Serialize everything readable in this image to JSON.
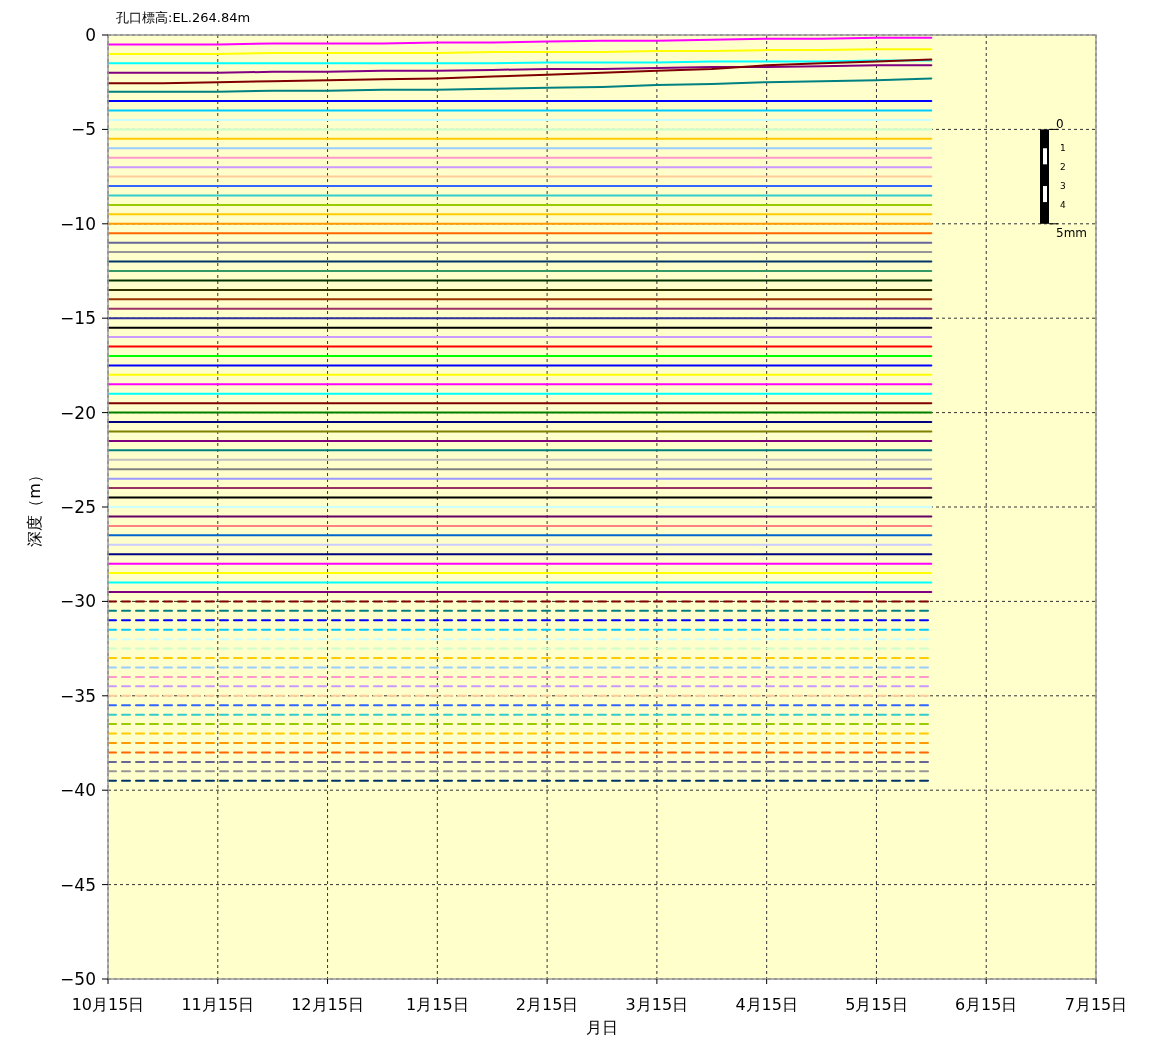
{
  "chart_data": {
    "type": "line",
    "xlabel": "月日",
    "ylabel": "深度（m）",
    "annotations": [
      "孔口標高:EL.264.84m",
      "0",
      "1",
      "2",
      "3",
      "4",
      "5mm"
    ],
    "categories": [
      "10月15日",
      null,
      "11月15日",
      null,
      "12月15日",
      null,
      "1月15日",
      null,
      "2月15日",
      null,
      "3月15日",
      null,
      "4月15日",
      null,
      "5月15日",
      null,
      "6月15日",
      null,
      "7月15日"
    ],
    "ylim": [
      -50,
      0
    ],
    "yticks": [
      -50,
      -45,
      -40,
      -35,
      -30,
      -25,
      -20,
      -15,
      -10,
      -5,
      0
    ],
    "grid": true,
    "line_style": "solid",
    "series": [
      {
        "color": "#ff00ff",
        "values": [
          -0.5,
          -0.5,
          -0.5,
          -0.45,
          -0.45,
          -0.45,
          -0.4,
          -0.4,
          -0.35,
          -0.3,
          -0.3,
          -0.25,
          -0.2,
          -0.2,
          -0.15,
          -0.15,
          null,
          null,
          null
        ]
      },
      {
        "color": "#ffff00",
        "values": [
          -1.0,
          -1.0,
          -1.0,
          -0.95,
          -0.95,
          -0.95,
          -0.95,
          -0.9,
          -0.9,
          -0.9,
          -0.85,
          -0.85,
          -0.8,
          -0.8,
          -0.75,
          -0.75,
          null,
          null,
          null
        ]
      },
      {
        "color": "#00ffff",
        "values": [
          -1.5,
          -1.5,
          -1.5,
          -1.5,
          -1.5,
          -1.5,
          -1.5,
          -1.5,
          -1.45,
          -1.45,
          -1.45,
          -1.4,
          -1.4,
          -1.4,
          -1.35,
          -1.35,
          null,
          null,
          null
        ]
      },
      {
        "color": "#800080",
        "values": [
          -2.0,
          -2.0,
          -2.0,
          -1.95,
          -1.95,
          -1.9,
          -1.9,
          -1.85,
          -1.8,
          -1.8,
          -1.75,
          -1.7,
          -1.7,
          -1.65,
          -1.6,
          -1.6,
          null,
          null,
          null
        ]
      },
      {
        "color": "#800000",
        "values": [
          -2.55,
          -2.55,
          -2.5,
          -2.45,
          -2.4,
          -2.35,
          -2.3,
          -2.2,
          -2.1,
          -2.0,
          -1.9,
          -1.8,
          -1.6,
          -1.5,
          -1.4,
          -1.3,
          null,
          null,
          null
        ]
      },
      {
        "color": "#008080",
        "values": [
          -3.0,
          -3.0,
          -3.0,
          -2.95,
          -2.95,
          -2.9,
          -2.9,
          -2.85,
          -2.8,
          -2.75,
          -2.65,
          -2.6,
          -2.5,
          -2.45,
          -2.4,
          -2.3,
          null,
          null,
          null
        ]
      },
      {
        "color": "#0000ff",
        "values": [
          -3.5,
          -3.5,
          -3.5,
          -3.5,
          -3.5,
          -3.5,
          -3.5,
          -3.5,
          -3.5,
          -3.5,
          -3.5,
          -3.5,
          -3.5,
          -3.5,
          -3.5,
          -3.5,
          null,
          null,
          null
        ]
      },
      {
        "color": "#00ccff",
        "values": [
          -4.0,
          -4.0,
          -4.0,
          -4.0,
          -4.0,
          -4.0,
          -4.0,
          -4.0,
          -4.0,
          -4.0,
          -4.0,
          -4.0,
          -4.0,
          -4.0,
          -4.0,
          -4.0,
          null,
          null,
          null
        ]
      },
      {
        "color": "#ccffff",
        "values": [
          -4.5,
          -4.5,
          -4.5,
          -4.5,
          -4.5,
          -4.5,
          -4.5,
          -4.5,
          -4.5,
          -4.5,
          -4.5,
          -4.5,
          -4.5,
          -4.5,
          -4.5,
          -4.5,
          null,
          null,
          null
        ]
      },
      {
        "color": "#ccffcc",
        "values": [
          -5.0,
          -5.0,
          -5.0,
          -5.0,
          -5.0,
          -5.0,
          -5.0,
          -5.0,
          -5.0,
          -5.0,
          -5.0,
          -5.0,
          -5.0,
          -5.0,
          -5.0,
          -5.0,
          null,
          null,
          null
        ]
      },
      {
        "color": "#ffcc00",
        "values": [
          -5.5,
          -5.5,
          -5.5,
          -5.5,
          -5.5,
          -5.5,
          -5.5,
          -5.5,
          -5.5,
          -5.5,
          -5.5,
          -5.5,
          -5.5,
          -5.5,
          -5.5,
          -5.5,
          null,
          null,
          null
        ]
      },
      {
        "color": "#99ccff",
        "values": [
          -6.0,
          -6.0,
          -6.0,
          -6.0,
          -6.0,
          -6.0,
          -6.0,
          -6.0,
          -6.0,
          -6.0,
          -6.0,
          -6.0,
          -6.0,
          -6.0,
          -6.0,
          -6.0,
          null,
          null,
          null
        ]
      },
      {
        "color": "#ff99cc",
        "values": [
          -6.5,
          -6.5,
          -6.5,
          -6.5,
          -6.5,
          -6.5,
          -6.5,
          -6.5,
          -6.5,
          -6.5,
          -6.5,
          -6.5,
          -6.5,
          -6.5,
          -6.5,
          -6.5,
          null,
          null,
          null
        ]
      },
      {
        "color": "#cc99ff",
        "values": [
          -7.0,
          -7.0,
          -7.0,
          -7.0,
          -7.0,
          -7.0,
          -7.0,
          -7.0,
          -7.0,
          -7.0,
          -7.0,
          -7.0,
          -7.0,
          -7.0,
          -7.0,
          -7.0,
          null,
          null,
          null
        ]
      },
      {
        "color": "#ffcc99",
        "values": [
          -7.5,
          -7.5,
          -7.5,
          -7.5,
          -7.5,
          -7.5,
          -7.5,
          -7.5,
          -7.5,
          -7.5,
          -7.5,
          -7.5,
          -7.5,
          -7.5,
          -7.5,
          -7.5,
          null,
          null,
          null
        ]
      },
      {
        "color": "#3366ff",
        "values": [
          -8.0,
          -8.0,
          -8.0,
          -8.0,
          -8.0,
          -8.0,
          -8.0,
          -8.0,
          -8.0,
          -8.0,
          -8.0,
          -8.0,
          -8.0,
          -8.0,
          -8.0,
          -8.0,
          null,
          null,
          null
        ]
      },
      {
        "color": "#33cccc",
        "values": [
          -8.5,
          -8.5,
          -8.5,
          -8.5,
          -8.5,
          -8.5,
          -8.5,
          -8.5,
          -8.5,
          -8.5,
          -8.5,
          -8.5,
          -8.5,
          -8.5,
          -8.5,
          -8.5,
          null,
          null,
          null
        ]
      },
      {
        "color": "#99cc00",
        "values": [
          -9.0,
          -9.0,
          -9.0,
          -9.0,
          -9.0,
          -9.0,
          -9.0,
          -9.0,
          -9.0,
          -9.0,
          -9.0,
          -9.0,
          -9.0,
          -9.0,
          -9.0,
          -9.0,
          null,
          null,
          null
        ]
      },
      {
        "color": "#ffcc00",
        "values": [
          -9.5,
          -9.5,
          -9.5,
          -9.5,
          -9.5,
          -9.5,
          -9.5,
          -9.5,
          -9.5,
          -9.5,
          -9.5,
          -9.5,
          -9.5,
          -9.5,
          -9.5,
          -9.5,
          null,
          null,
          null
        ]
      },
      {
        "color": "#ff9900",
        "values": [
          -10.0,
          -10.0,
          -10.0,
          -10.0,
          -10.0,
          -10.0,
          -10.0,
          -10.0,
          -10.0,
          -10.0,
          -10.0,
          -10.0,
          -10.0,
          -10.0,
          -10.0,
          -10.0,
          null,
          null,
          null
        ]
      },
      {
        "color": "#ff6600",
        "values": [
          -10.5,
          -10.5,
          -10.5,
          -10.5,
          -10.5,
          -10.5,
          -10.5,
          -10.5,
          -10.5,
          -10.5,
          -10.5,
          -10.5,
          -10.5,
          -10.5,
          -10.5,
          -10.5,
          null,
          null,
          null
        ]
      },
      {
        "color": "#666699",
        "values": [
          -11.0,
          -11.0,
          -11.0,
          -11.0,
          -11.0,
          -11.0,
          -11.0,
          -11.0,
          -11.0,
          -11.0,
          -11.0,
          -11.0,
          -11.0,
          -11.0,
          -11.0,
          -11.0,
          null,
          null,
          null
        ]
      },
      {
        "color": "#969696",
        "values": [
          -11.5,
          -11.5,
          -11.5,
          -11.5,
          -11.5,
          -11.5,
          -11.5,
          -11.5,
          -11.5,
          -11.5,
          -11.5,
          -11.5,
          -11.5,
          -11.5,
          -11.5,
          -11.5,
          null,
          null,
          null
        ]
      },
      {
        "color": "#003366",
        "values": [
          -12.0,
          -12.0,
          -12.0,
          -12.0,
          -12.0,
          -12.0,
          -12.0,
          -12.0,
          -12.0,
          -12.0,
          -12.0,
          -12.0,
          -12.0,
          -12.0,
          -12.0,
          -12.0,
          null,
          null,
          null
        ]
      },
      {
        "color": "#339966",
        "values": [
          -12.5,
          -12.5,
          -12.5,
          -12.5,
          -12.5,
          -12.5,
          -12.5,
          -12.5,
          -12.5,
          -12.5,
          -12.5,
          -12.5,
          -12.5,
          -12.5,
          -12.5,
          -12.5,
          null,
          null,
          null
        ]
      },
      {
        "color": "#003300",
        "values": [
          -13.0,
          -13.0,
          -13.0,
          -13.0,
          -13.0,
          -13.0,
          -13.0,
          -13.0,
          -13.0,
          -13.0,
          -13.0,
          -13.0,
          -13.0,
          -13.0,
          -13.0,
          -13.0,
          null,
          null,
          null
        ]
      },
      {
        "color": "#333300",
        "values": [
          -13.5,
          -13.5,
          -13.5,
          -13.5,
          -13.5,
          -13.5,
          -13.5,
          -13.5,
          -13.5,
          -13.5,
          -13.5,
          -13.5,
          -13.5,
          -13.5,
          -13.5,
          -13.5,
          null,
          null,
          null
        ]
      },
      {
        "color": "#993300",
        "values": [
          -14.0,
          -14.0,
          -14.0,
          -14.0,
          -14.0,
          -14.0,
          -14.0,
          -14.0,
          -14.0,
          -14.0,
          -14.0,
          -14.0,
          -14.0,
          -14.0,
          -14.0,
          -14.0,
          null,
          null,
          null
        ]
      },
      {
        "color": "#993366",
        "values": [
          -14.5,
          -14.5,
          -14.5,
          -14.5,
          -14.5,
          -14.5,
          -14.5,
          -14.5,
          -14.5,
          -14.5,
          -14.5,
          -14.5,
          -14.5,
          -14.5,
          -14.5,
          -14.5,
          null,
          null,
          null
        ]
      },
      {
        "color": "#333399",
        "values": [
          -15.0,
          -15.0,
          -15.0,
          -15.0,
          -15.0,
          -15.0,
          -15.0,
          -15.0,
          -15.0,
          -15.0,
          -15.0,
          -15.0,
          -15.0,
          -15.0,
          -15.0,
          -15.0,
          null,
          null,
          null
        ]
      },
      {
        "color": "#000000",
        "values": [
          -15.5,
          -15.5,
          -15.5,
          -15.5,
          -15.5,
          -15.5,
          -15.5,
          -15.5,
          -15.5,
          -15.5,
          -15.5,
          -15.5,
          -15.5,
          -15.5,
          -15.5,
          -15.5,
          null,
          null,
          null
        ]
      },
      {
        "color": "#cc99ff",
        "values": [
          -16.0,
          -16.0,
          -16.0,
          -16.0,
          -16.0,
          -16.0,
          -16.0,
          -16.0,
          -16.0,
          -16.0,
          -16.0,
          -16.0,
          -16.0,
          -16.0,
          -16.0,
          -16.0,
          null,
          null,
          null
        ]
      },
      {
        "color": "#ff0000",
        "values": [
          -16.5,
          -16.5,
          -16.5,
          -16.5,
          -16.5,
          -16.5,
          -16.5,
          -16.5,
          -16.5,
          -16.5,
          -16.5,
          -16.5,
          -16.5,
          -16.5,
          -16.5,
          -16.5,
          null,
          null,
          null
        ]
      },
      {
        "color": "#00ff00",
        "values": [
          -17.0,
          -17.0,
          -17.0,
          -17.0,
          -17.0,
          -17.0,
          -17.0,
          -17.0,
          -17.0,
          -17.0,
          -17.0,
          -17.0,
          -17.0,
          -17.0,
          -17.0,
          -17.0,
          null,
          null,
          null
        ]
      },
      {
        "color": "#0000ff",
        "values": [
          -17.5,
          -17.5,
          -17.5,
          -17.5,
          -17.5,
          -17.5,
          -17.5,
          -17.5,
          -17.5,
          -17.5,
          -17.5,
          -17.5,
          -17.5,
          -17.5,
          -17.5,
          -17.5,
          null,
          null,
          null
        ]
      },
      {
        "color": "#ffff00",
        "values": [
          -18.0,
          -18.0,
          -18.0,
          -18.0,
          -18.0,
          -18.0,
          -18.0,
          -18.0,
          -18.0,
          -18.0,
          -18.0,
          -18.0,
          -18.0,
          -18.0,
          -18.0,
          -18.0,
          null,
          null,
          null
        ]
      },
      {
        "color": "#ff00ff",
        "values": [
          -18.5,
          -18.5,
          -18.5,
          -18.5,
          -18.5,
          -18.5,
          -18.5,
          -18.5,
          -18.5,
          -18.5,
          -18.5,
          -18.5,
          -18.5,
          -18.5,
          -18.5,
          -18.5,
          null,
          null,
          null
        ]
      },
      {
        "color": "#00ffff",
        "values": [
          -19.0,
          -19.0,
          -19.0,
          -19.0,
          -19.0,
          -19.0,
          -19.0,
          -19.0,
          -19.0,
          -19.0,
          -19.0,
          -19.0,
          -19.0,
          -19.0,
          -19.0,
          -19.0,
          null,
          null,
          null
        ]
      },
      {
        "color": "#800000",
        "values": [
          -19.5,
          -19.5,
          -19.5,
          -19.5,
          -19.5,
          -19.5,
          -19.5,
          -19.5,
          -19.5,
          -19.5,
          -19.5,
          -19.5,
          -19.5,
          -19.5,
          -19.5,
          -19.5,
          null,
          null,
          null
        ]
      },
      {
        "color": "#008000",
        "values": [
          -20.0,
          -20.0,
          -20.0,
          -20.0,
          -20.0,
          -20.0,
          -20.0,
          -20.0,
          -20.0,
          -20.0,
          -20.0,
          -20.0,
          -20.0,
          -20.0,
          -20.0,
          -20.0,
          null,
          null,
          null
        ]
      },
      {
        "color": "#000080",
        "values": [
          -20.5,
          -20.5,
          -20.5,
          -20.5,
          -20.5,
          -20.5,
          -20.5,
          -20.5,
          -20.5,
          -20.5,
          -20.5,
          -20.5,
          -20.5,
          -20.5,
          -20.5,
          -20.5,
          null,
          null,
          null
        ]
      },
      {
        "color": "#808000",
        "values": [
          -21.0,
          -21.0,
          -21.0,
          -21.0,
          -21.0,
          -21.0,
          -21.0,
          -21.0,
          -21.0,
          -21.0,
          -21.0,
          -21.0,
          -21.0,
          -21.0,
          -21.0,
          -21.0,
          null,
          null,
          null
        ]
      },
      {
        "color": "#800080",
        "values": [
          -21.5,
          -21.5,
          -21.5,
          -21.5,
          -21.5,
          -21.5,
          -21.5,
          -21.5,
          -21.5,
          -21.5,
          -21.5,
          -21.5,
          -21.5,
          -21.5,
          -21.5,
          -21.5,
          null,
          null,
          null
        ]
      },
      {
        "color": "#008080",
        "values": [
          -22.0,
          -22.0,
          -22.0,
          -22.0,
          -22.0,
          -22.0,
          -22.0,
          -22.0,
          -22.0,
          -22.0,
          -22.0,
          -22.0,
          -22.0,
          -22.0,
          -22.0,
          -22.0,
          null,
          null,
          null
        ]
      },
      {
        "color": "#c0c0c0",
        "values": [
          -22.5,
          -22.5,
          -22.5,
          -22.5,
          -22.5,
          -22.5,
          -22.5,
          -22.5,
          -22.5,
          -22.5,
          -22.5,
          -22.5,
          -22.5,
          -22.5,
          -22.5,
          -22.5,
          null,
          null,
          null
        ]
      },
      {
        "color": "#808080",
        "values": [
          -23.0,
          -23.0,
          -23.0,
          -23.0,
          -23.0,
          -23.0,
          -23.0,
          -23.0,
          -23.0,
          -23.0,
          -23.0,
          -23.0,
          -23.0,
          -23.0,
          -23.0,
          -23.0,
          null,
          null,
          null
        ]
      },
      {
        "color": "#9999ff",
        "values": [
          -23.5,
          -23.5,
          -23.5,
          -23.5,
          -23.5,
          -23.5,
          -23.5,
          -23.5,
          -23.5,
          -23.5,
          -23.5,
          -23.5,
          -23.5,
          -23.5,
          -23.5,
          -23.5,
          null,
          null,
          null
        ]
      },
      {
        "color": "#993366",
        "values": [
          -24.0,
          -24.0,
          -24.0,
          -24.0,
          -24.0,
          -24.0,
          -24.0,
          -24.0,
          -24.0,
          -24.0,
          -24.0,
          -24.0,
          -24.0,
          -24.0,
          -24.0,
          -24.0,
          null,
          null,
          null
        ]
      },
      {
        "color": "#000000",
        "values": [
          -24.5,
          -24.5,
          -24.5,
          -24.5,
          -24.5,
          -24.5,
          -24.5,
          -24.5,
          -24.5,
          -24.5,
          -24.5,
          -24.5,
          -24.5,
          -24.5,
          -24.5,
          -24.5,
          null,
          null,
          null
        ]
      },
      {
        "color": "#ccffff",
        "values": [
          -25.0,
          -25.0,
          -25.0,
          -25.0,
          -25.0,
          -25.0,
          -25.0,
          -25.0,
          -25.0,
          -25.0,
          -25.0,
          -25.0,
          -25.0,
          -25.0,
          -25.0,
          -25.0,
          null,
          null,
          null
        ]
      },
      {
        "color": "#660066",
        "values": [
          -25.5,
          -25.5,
          -25.5,
          -25.5,
          -25.5,
          -25.5,
          -25.5,
          -25.5,
          -25.5,
          -25.5,
          -25.5,
          -25.5,
          -25.5,
          -25.5,
          -25.5,
          -25.5,
          null,
          null,
          null
        ]
      },
      {
        "color": "#ff8080",
        "values": [
          -26.0,
          -26.0,
          -26.0,
          -26.0,
          -26.0,
          -26.0,
          -26.0,
          -26.0,
          -26.0,
          -26.0,
          -26.0,
          -26.0,
          -26.0,
          -26.0,
          -26.0,
          -26.0,
          null,
          null,
          null
        ]
      },
      {
        "color": "#0066cc",
        "values": [
          -26.5,
          -26.5,
          -26.5,
          -26.5,
          -26.5,
          -26.5,
          -26.5,
          -26.5,
          -26.5,
          -26.5,
          -26.5,
          -26.5,
          -26.5,
          -26.5,
          -26.5,
          -26.5,
          null,
          null,
          null
        ]
      },
      {
        "color": "#ccccff",
        "values": [
          -27.0,
          -27.0,
          -27.0,
          -27.0,
          -27.0,
          -27.0,
          -27.0,
          -27.0,
          -27.0,
          -27.0,
          -27.0,
          -27.0,
          -27.0,
          -27.0,
          -27.0,
          -27.0,
          null,
          null,
          null
        ]
      },
      {
        "color": "#000080",
        "values": [
          -27.5,
          -27.5,
          -27.5,
          -27.5,
          -27.5,
          -27.5,
          -27.5,
          -27.5,
          -27.5,
          -27.5,
          -27.5,
          -27.5,
          -27.5,
          -27.5,
          -27.5,
          -27.5,
          null,
          null,
          null
        ]
      },
      {
        "color": "#ff00ff",
        "values": [
          -28.0,
          -28.0,
          -28.0,
          -28.0,
          -28.0,
          -28.0,
          -28.0,
          -28.0,
          -28.0,
          -28.0,
          -28.0,
          -28.0,
          -28.0,
          -28.0,
          -28.0,
          -28.0,
          null,
          null,
          null
        ]
      },
      {
        "color": "#ffff00",
        "values": [
          -28.5,
          -28.5,
          -28.5,
          -28.5,
          -28.5,
          -28.5,
          -28.5,
          -28.5,
          -28.5,
          -28.5,
          -28.5,
          -28.5,
          -28.5,
          -28.5,
          -28.5,
          -28.5,
          null,
          null,
          null
        ]
      },
      {
        "color": "#00ffff",
        "values": [
          -29.0,
          -29.0,
          -29.0,
          -29.0,
          -29.0,
          -29.0,
          -29.0,
          -29.0,
          -29.0,
          -29.0,
          -29.0,
          -29.0,
          -29.0,
          -29.0,
          -29.0,
          -29.0,
          null,
          null,
          null
        ]
      },
      {
        "color": "#800080",
        "values": [
          -29.5,
          -29.5,
          -29.5,
          -29.5,
          -29.5,
          -29.5,
          -29.5,
          -29.5,
          -29.5,
          -29.5,
          -29.5,
          -29.5,
          -29.5,
          -29.5,
          -29.5,
          -29.5,
          null,
          null,
          null
        ]
      },
      {
        "color": "#800000",
        "line_style": "dashed",
        "values": [
          -30.0,
          -30.0,
          -30.0,
          -30.0,
          -30.0,
          -30.0,
          -30.0,
          -30.0,
          -30.0,
          -30.0,
          -30.0,
          -30.0,
          -30.0,
          -30.0,
          -30.0,
          -30.0,
          null,
          null,
          null
        ]
      },
      {
        "color": "#008080",
        "line_style": "dashed",
        "values": [
          -30.5,
          -30.5,
          -30.5,
          -30.5,
          -30.5,
          -30.5,
          -30.5,
          -30.5,
          -30.5,
          -30.5,
          -30.5,
          -30.5,
          -30.5,
          -30.5,
          -30.5,
          -30.5,
          null,
          null,
          null
        ]
      },
      {
        "color": "#0000ff",
        "line_style": "dashed",
        "values": [
          -31.0,
          -31.0,
          -31.0,
          -31.0,
          -31.0,
          -31.0,
          -31.0,
          -31.0,
          -31.0,
          -31.0,
          -31.0,
          -31.0,
          -31.0,
          -31.0,
          -31.0,
          -31.0,
          null,
          null,
          null
        ]
      },
      {
        "color": "#00ccff",
        "line_style": "dashed",
        "values": [
          -31.5,
          -31.5,
          -31.5,
          -31.5,
          -31.5,
          -31.5,
          -31.5,
          -31.5,
          -31.5,
          -31.5,
          -31.5,
          -31.5,
          -31.5,
          -31.5,
          -31.5,
          -31.5,
          null,
          null,
          null
        ]
      },
      {
        "color": "#ccffff",
        "line_style": "dashed",
        "values": [
          -32.0,
          -32.0,
          -32.0,
          -32.0,
          -32.0,
          -32.0,
          -32.0,
          -32.0,
          -32.0,
          -32.0,
          -32.0,
          -32.0,
          -32.0,
          -32.0,
          -32.0,
          -32.0,
          null,
          null,
          null
        ]
      },
      {
        "color": "#ccffcc",
        "line_style": "dashed",
        "values": [
          -32.5,
          -32.5,
          -32.5,
          -32.5,
          -32.5,
          -32.5,
          -32.5,
          -32.5,
          -32.5,
          -32.5,
          -32.5,
          -32.5,
          -32.5,
          -32.5,
          -32.5,
          -32.5,
          null,
          null,
          null
        ]
      },
      {
        "color": "#ffcc00",
        "line_style": "dashed",
        "values": [
          -33.0,
          -33.0,
          -33.0,
          -33.0,
          -33.0,
          -33.0,
          -33.0,
          -33.0,
          -33.0,
          -33.0,
          -33.0,
          -33.0,
          -33.0,
          -33.0,
          -33.0,
          -33.0,
          null,
          null,
          null
        ]
      },
      {
        "color": "#99ccff",
        "line_style": "dashed",
        "values": [
          -33.5,
          -33.5,
          -33.5,
          -33.5,
          -33.5,
          -33.5,
          -33.5,
          -33.5,
          -33.5,
          -33.5,
          -33.5,
          -33.5,
          -33.5,
          -33.5,
          -33.5,
          -33.5,
          null,
          null,
          null
        ]
      },
      {
        "color": "#ff99cc",
        "line_style": "dashed",
        "values": [
          -34.0,
          -34.0,
          -34.0,
          -34.0,
          -34.0,
          -34.0,
          -34.0,
          -34.0,
          -34.0,
          -34.0,
          -34.0,
          -34.0,
          -34.0,
          -34.0,
          -34.0,
          -34.0,
          null,
          null,
          null
        ]
      },
      {
        "color": "#cc99ff",
        "line_style": "dashed",
        "values": [
          -34.5,
          -34.5,
          -34.5,
          -34.5,
          -34.5,
          -34.5,
          -34.5,
          -34.5,
          -34.5,
          -34.5,
          -34.5,
          -34.5,
          -34.5,
          -34.5,
          -34.5,
          -34.5,
          null,
          null,
          null
        ]
      },
      {
        "color": "#ffcc99",
        "line_style": "dashed",
        "values": [
          -35.0,
          -35.0,
          -35.0,
          -35.0,
          -35.0,
          -35.0,
          -35.0,
          -35.0,
          -35.0,
          -35.0,
          -35.0,
          -35.0,
          -35.0,
          -35.0,
          -35.0,
          -35.0,
          null,
          null,
          null
        ]
      },
      {
        "color": "#3366ff",
        "line_style": "dashed",
        "values": [
          -35.5,
          -35.5,
          -35.5,
          -35.5,
          -35.5,
          -35.5,
          -35.5,
          -35.5,
          -35.5,
          -35.5,
          -35.5,
          -35.5,
          -35.5,
          -35.5,
          -35.5,
          -35.5,
          null,
          null,
          null
        ]
      },
      {
        "color": "#33cccc",
        "line_style": "dashed",
        "values": [
          -36.0,
          -36.0,
          -36.0,
          -36.0,
          -36.0,
          -36.0,
          -36.0,
          -36.0,
          -36.0,
          -36.0,
          -36.0,
          -36.0,
          -36.0,
          -36.0,
          -36.0,
          -36.0,
          null,
          null,
          null
        ]
      },
      {
        "color": "#99cc00",
        "line_style": "dashed",
        "values": [
          -36.5,
          -36.5,
          -36.5,
          -36.5,
          -36.5,
          -36.5,
          -36.5,
          -36.5,
          -36.5,
          -36.5,
          -36.5,
          -36.5,
          -36.5,
          -36.5,
          -36.5,
          -36.5,
          null,
          null,
          null
        ]
      },
      {
        "color": "#ffcc00",
        "line_style": "dashed",
        "values": [
          -37.0,
          -37.0,
          -37.0,
          -37.0,
          -37.0,
          -37.0,
          -37.0,
          -37.0,
          -37.0,
          -37.0,
          -37.0,
          -37.0,
          -37.0,
          -37.0,
          -37.0,
          -37.0,
          null,
          null,
          null
        ]
      },
      {
        "color": "#ff9900",
        "line_style": "dashed",
        "values": [
          -37.5,
          -37.5,
          -37.5,
          -37.5,
          -37.5,
          -37.5,
          -37.5,
          -37.5,
          -37.5,
          -37.5,
          -37.5,
          -37.5,
          -37.5,
          -37.5,
          -37.5,
          -37.5,
          null,
          null,
          null
        ]
      },
      {
        "color": "#ff6600",
        "line_style": "dashed",
        "values": [
          -38.0,
          -38.0,
          -38.0,
          -38.0,
          -38.0,
          -38.0,
          -38.0,
          -38.0,
          -38.0,
          -38.0,
          -38.0,
          -38.0,
          -38.0,
          -38.0,
          -38.0,
          -38.0,
          null,
          null,
          null
        ]
      },
      {
        "color": "#666699",
        "line_style": "dashed",
        "values": [
          -38.5,
          -38.5,
          -38.5,
          -38.5,
          -38.5,
          -38.5,
          -38.5,
          -38.5,
          -38.5,
          -38.5,
          -38.5,
          -38.5,
          -38.5,
          -38.5,
          -38.5,
          -38.5,
          null,
          null,
          null
        ]
      },
      {
        "color": "#969696",
        "line_style": "dashed",
        "values": [
          -39.0,
          -39.0,
          -39.0,
          -39.0,
          -39.0,
          -39.0,
          -39.0,
          -39.0,
          -39.0,
          -39.0,
          -39.0,
          -39.0,
          -39.0,
          -39.0,
          -39.0,
          -39.0,
          null,
          null,
          null
        ]
      },
      {
        "color": "#003366",
        "line_style": "dashed",
        "values": [
          -39.5,
          -39.5,
          -39.5,
          -39.5,
          -39.5,
          -39.5,
          -39.5,
          -39.5,
          -39.5,
          -39.5,
          -39.5,
          -39.5,
          -39.5,
          -39.5,
          -39.5,
          -39.5,
          null,
          null,
          null
        ]
      }
    ]
  }
}
